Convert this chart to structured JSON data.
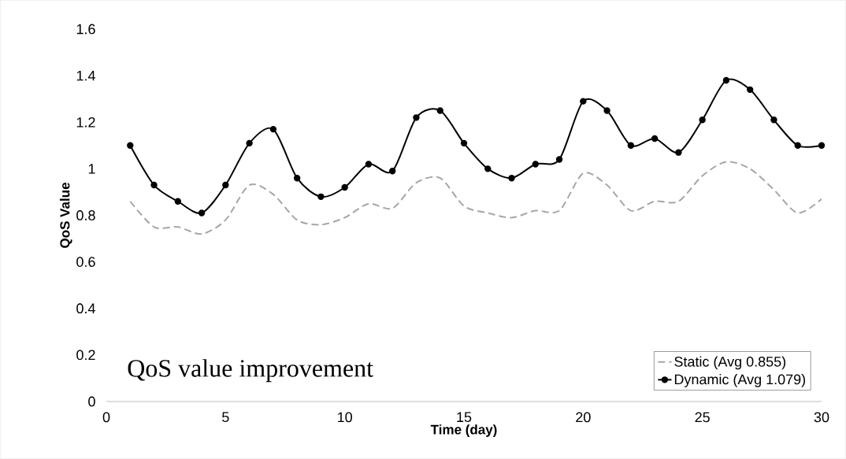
{
  "chart_data": {
    "type": "line",
    "xlabel": "Time (day)",
    "ylabel": "QoS Value",
    "x": [
      1,
      2,
      3,
      4,
      5,
      6,
      7,
      8,
      9,
      10,
      11,
      12,
      13,
      14,
      15,
      16,
      17,
      18,
      19,
      20,
      21,
      22,
      23,
      24,
      25,
      26,
      27,
      28,
      29,
      30
    ],
    "series": [
      {
        "name": "Static (Avg 0.855)",
        "color": "#a6a6a6",
        "line_style": "dashed",
        "marker": "none",
        "values": [
          0.86,
          0.75,
          0.75,
          0.72,
          0.78,
          0.93,
          0.89,
          0.78,
          0.76,
          0.79,
          0.85,
          0.83,
          0.94,
          0.96,
          0.84,
          0.81,
          0.79,
          0.82,
          0.82,
          0.98,
          0.93,
          0.82,
          0.86,
          0.86,
          0.97,
          1.03,
          1.0,
          0.91,
          0.81,
          0.87
        ]
      },
      {
        "name": "Dynamic (Avg 1.079)",
        "color": "#000000",
        "line_style": "solid",
        "marker": "circle",
        "values": [
          1.1,
          0.93,
          0.86,
          0.81,
          0.93,
          1.11,
          1.17,
          0.96,
          0.88,
          0.92,
          1.02,
          0.99,
          1.22,
          1.25,
          1.11,
          1.0,
          0.96,
          1.02,
          1.04,
          1.29,
          1.25,
          1.1,
          1.13,
          1.07,
          1.21,
          1.38,
          1.34,
          1.21,
          1.1,
          1.1
        ]
      }
    ],
    "xlim": [
      0,
      30
    ],
    "xticks": [
      0,
      5,
      10,
      15,
      20,
      25,
      30
    ],
    "ylim": [
      0,
      1.6
    ],
    "yticks": [
      0,
      0.2,
      0.4,
      0.6,
      0.8,
      1,
      1.2,
      1.4,
      1.6
    ],
    "legend": "bottom right",
    "annotations": [
      "QoS value improvement"
    ]
  }
}
